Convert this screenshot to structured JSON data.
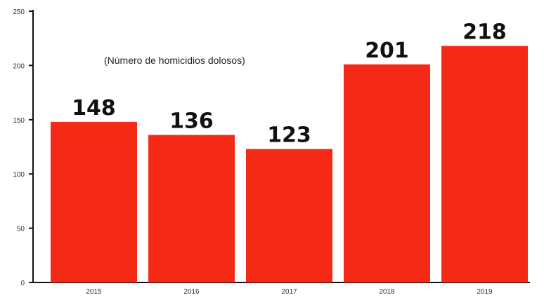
{
  "chart_data": {
    "type": "bar",
    "title": "",
    "subtitle": "",
    "annotation": "(Número de homicidios dolosos)",
    "xlabel": "",
    "ylabel": "",
    "categories": [
      "2015",
      "2016",
      "2017",
      "2018",
      "2019"
    ],
    "values": [
      148,
      136,
      123,
      201,
      218
    ],
    "value_labels": [
      "148",
      "136",
      "123",
      "201",
      "218"
    ],
    "ylim": [
      0,
      250
    ],
    "yticks": [
      0,
      50,
      100,
      150,
      200,
      250
    ],
    "ytick_labels": [
      "0",
      "50",
      "100",
      "150",
      "200",
      "250"
    ],
    "grid": false,
    "legend": "none",
    "colors": {
      "bar": "#f42a17",
      "text": "#111111"
    }
  }
}
